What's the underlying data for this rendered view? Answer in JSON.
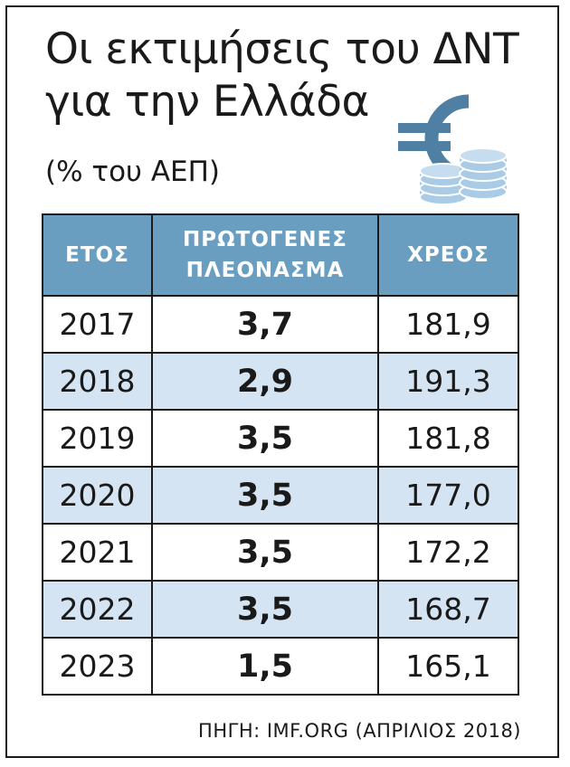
{
  "header": {
    "title_line1": "Οι εκτιμήσεις του ΔΝΤ",
    "title_line2": "για την Ελλάδα",
    "subtitle": "(% του ΑΕΠ)"
  },
  "icon": "euro-coins-icon",
  "chart_data": {
    "type": "table",
    "title": "Οι εκτιμήσεις του ΔΝΤ για την Ελλάδα",
    "subtitle": "(% του ΑΕΠ)",
    "columns": [
      "ΕΤΟΣ",
      "ΠΡΩΤΟΓΕΝΕΣ ΠΛΕΟΝΑΣΜΑ",
      "ΧΡΕΟΣ"
    ],
    "header": {
      "year": "ΕΤΟΣ",
      "primary_line1": "ΠΡΩΤΟΓΕΝΕΣ",
      "primary_line2": "ΠΛΕΟΝΑΣΜΑ",
      "debt": "ΧΡΕΟΣ"
    },
    "rows": [
      {
        "year": "2017",
        "primary": "3,7",
        "debt": "181,9"
      },
      {
        "year": "2018",
        "primary": "2,9",
        "debt": "191,3"
      },
      {
        "year": "2019",
        "primary": "3,5",
        "debt": "181,8"
      },
      {
        "year": "2020",
        "primary": "3,5",
        "debt": "177,0"
      },
      {
        "year": "2021",
        "primary": "3,5",
        "debt": "172,2"
      },
      {
        "year": "2022",
        "primary": "3,5",
        "debt": "168,7"
      },
      {
        "year": "2023",
        "primary": "1,5",
        "debt": "165,1"
      }
    ],
    "source": "ΠΗΓΗ: IMF.ORG (ΑΠΡΙΛΙΟΣ 2018)"
  },
  "colors": {
    "header_bg": "#6a9ec1",
    "shaded_row": "#d4e4f2",
    "euro_dark": "#4f7fa3",
    "coin_light": "#a9cbe6"
  }
}
